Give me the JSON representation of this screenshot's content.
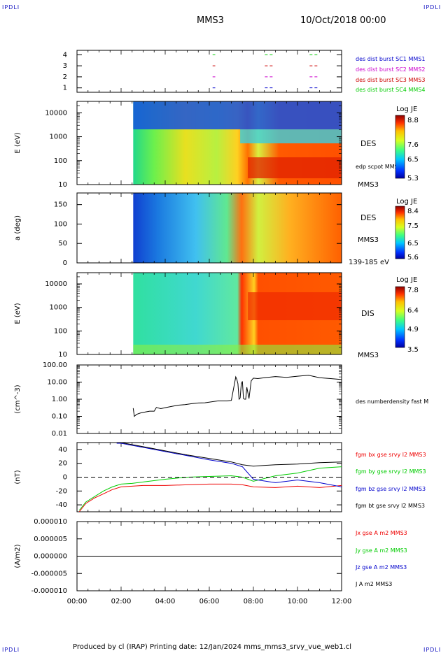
{
  "header": {
    "corner_tl": "IPDLI",
    "corner_tr": "IPDLI",
    "corner_bl": "IPDLI",
    "corner_br": "IPDLI",
    "spacecraft": "MMS3",
    "date": "10/Oct/2018 00:00"
  },
  "footer": "Produced by cl (IRAP)   Printing date: 12/Jan/2024   mms_mms3_srvy_vue_web1.cl",
  "chart_data": [
    {
      "type": "line",
      "panel": "burst-availability",
      "ylim": [
        0.6,
        4.4
      ],
      "yticks": [
        "1",
        "2",
        "3",
        "4"
      ],
      "series": [
        {
          "name": "des dist burst SC1 MMS1",
          "color": "#0000cc",
          "y": 1,
          "segments": [
            [
              6.15,
              6.27
            ],
            [
              8.52,
              8.88
            ],
            [
              10.55,
              10.95
            ]
          ]
        },
        {
          "name": "des dist burst SC2 MMS2",
          "color": "#cc00cc",
          "y": 2,
          "segments": [
            [
              6.15,
              6.27
            ],
            [
              8.52,
              8.88
            ],
            [
              10.55,
              10.95
            ]
          ]
        },
        {
          "name": "des dist burst SC3 MMS3",
          "color": "#cc0000",
          "y": 3,
          "segments": [
            [
              6.15,
              6.27
            ],
            [
              8.52,
              8.88
            ],
            [
              10.55,
              10.95
            ]
          ]
        },
        {
          "name": "des dist burst SC4 MMS4",
          "color": "#00cc00",
          "y": 4,
          "segments": [
            [
              6.15,
              6.27
            ],
            [
              8.52,
              8.88
            ],
            [
              10.55,
              10.95
            ]
          ]
        }
      ]
    },
    {
      "type": "heatmap",
      "panel": "des-energy-spectrogram",
      "ylabel": "E (eV)",
      "yscale": "log",
      "ylim": [
        10,
        30000
      ],
      "yticks": [
        "10",
        "100",
        "1000",
        "10000"
      ],
      "label": "DES",
      "overlay_label": "edp scpot MMS3",
      "sc_label": "MMS3",
      "colorbar": {
        "title": "Log JE",
        "ticks": [
          "8.8",
          "7.6",
          "6.5",
          "5.3"
        ]
      }
    },
    {
      "type": "heatmap",
      "panel": "des-pitch-angle",
      "ylabel": "a (deg)",
      "ylim": [
        0,
        180
      ],
      "yticks": [
        "0",
        "50",
        "100",
        "150"
      ],
      "label": "DES",
      "sc_label": "MMS3",
      "energy_range": "139-185 eV",
      "colorbar": {
        "title": "Log JE",
        "ticks": [
          "8.4",
          "7.5",
          "6.5",
          "5.6"
        ]
      }
    },
    {
      "type": "heatmap",
      "panel": "dis-energy-spectrogram",
      "ylabel": "E (eV)",
      "yscale": "log",
      "ylim": [
        10,
        30000
      ],
      "yticks": [
        "10",
        "100",
        "1000",
        "10000"
      ],
      "label": "DIS",
      "sc_label": "MMS3",
      "colorbar": {
        "title": "Log JE",
        "ticks": [
          "7.8",
          "6.4",
          "4.9",
          "3.5"
        ]
      }
    },
    {
      "type": "line",
      "panel": "number-density",
      "ylabel": "(cm^-3)",
      "yscale": "log",
      "ylim": [
        0.01,
        100
      ],
      "yticks": [
        "0.01",
        "0.10",
        "1.00",
        "10.00",
        "100.00"
      ],
      "series": [
        {
          "name": "des numberdensity fast M",
          "color": "#000000",
          "x": [
            2.55,
            2.6,
            2.7,
            2.9,
            3.1,
            3.3,
            3.5,
            3.6,
            3.8,
            4.0,
            4.3,
            4.6,
            4.9,
            5.2,
            5.5,
            5.8,
            6.1,
            6.4,
            6.8,
            7.0,
            7.2,
            7.25,
            7.3,
            7.35,
            7.4,
            7.45,
            7.5,
            7.55,
            7.6,
            7.65,
            7.7,
            7.8,
            7.9,
            8.0,
            8.2,
            8.5,
            9.0,
            9.5,
            10.0,
            10.5,
            11.0,
            11.5,
            12.0
          ],
          "y": [
            0.3,
            0.1,
            0.13,
            0.16,
            0.18,
            0.2,
            0.2,
            0.33,
            0.28,
            0.32,
            0.38,
            0.45,
            0.48,
            0.55,
            0.6,
            0.62,
            0.7,
            0.8,
            0.8,
            0.85,
            20,
            14,
            8,
            1.0,
            1.2,
            8,
            11,
            1.1,
            1.0,
            1.0,
            5,
            1.1,
            12,
            17,
            16,
            18,
            21,
            19,
            22,
            25,
            18,
            16,
            14
          ]
        }
      ]
    },
    {
      "type": "line",
      "panel": "magnetic-field",
      "ylabel": "(nT)",
      "ylim": [
        -50,
        50
      ],
      "yticks": [
        "-40",
        "-20",
        "0",
        "20",
        "40"
      ],
      "series": [
        {
          "name": "fgm bx gse srvy l2 MMS3",
          "color": "#ee0000",
          "x": [
            0.1,
            0.4,
            0.8,
            1.2,
            1.6,
            2.0,
            2.5,
            3.0,
            4.0,
            5.0,
            6.0,
            7.0,
            7.5,
            8.0,
            9.0,
            10.0,
            11.0,
            12.0
          ],
          "y": [
            -50,
            -38,
            -30,
            -24,
            -18,
            -14,
            -13,
            -12,
            -12,
            -11,
            -10,
            -10,
            -11,
            -14,
            -15,
            -13,
            -15,
            -12
          ]
        },
        {
          "name": "fgm by gse srvy l2 MMS3",
          "color": "#00cc00",
          "x": [
            0.1,
            0.4,
            0.8,
            1.2,
            1.6,
            2.0,
            2.5,
            3.0,
            4.0,
            5.0,
            6.0,
            7.0,
            7.5,
            8.0,
            9.0,
            10.0,
            11.0,
            12.0
          ],
          "y": [
            -48,
            -36,
            -28,
            -20,
            -14,
            -10,
            -9,
            -7,
            -3,
            0,
            1,
            2,
            0,
            -6,
            2,
            6,
            13,
            15
          ]
        },
        {
          "name": "fgm bz gse srvy l2 MMS3",
          "color": "#0000cc",
          "x": [
            1.8,
            2.0,
            2.5,
            3.0,
            4.0,
            5.0,
            6.0,
            7.0,
            7.5,
            8.0,
            9.0,
            10.0,
            11.0,
            12.0
          ],
          "y": [
            49,
            49,
            46,
            43,
            37,
            31,
            25,
            20,
            15,
            -3,
            -8,
            -4,
            -8,
            -14
          ]
        },
        {
          "name": "fgm bt gse srvy l2 MMS3",
          "color": "#000000",
          "x": [
            1.8,
            2.0,
            2.5,
            3.0,
            4.0,
            5.0,
            6.0,
            7.0,
            7.5,
            8.0,
            9.0,
            10.0,
            11.0,
            12.0
          ],
          "y": [
            50,
            50,
            47,
            44,
            38,
            32,
            27,
            22,
            18,
            16,
            18,
            19,
            21,
            22
          ]
        }
      ]
    },
    {
      "type": "line",
      "panel": "current-density",
      "ylabel": "(A/m2)",
      "ylim": [
        -1e-05,
        1e-05
      ],
      "yticks": [
        "-0.000010",
        "-0.000005",
        "0.000000",
        "0.000005",
        "0.000010"
      ],
      "series": [
        {
          "name": "Jx gse A m2 MMS3",
          "color": "#ee0000",
          "x": [
            0,
            12
          ],
          "y": [
            0,
            0
          ]
        },
        {
          "name": "Jy gse A m2 MMS3",
          "color": "#00cc00",
          "x": [
            0,
            12
          ],
          "y": [
            0,
            0
          ]
        },
        {
          "name": "Jz gse A m2 MMS3",
          "color": "#0000cc",
          "x": [
            0,
            12
          ],
          "y": [
            0,
            0
          ]
        },
        {
          "name": "J A m2 MMS3",
          "color": "#000000",
          "x": [
            0,
            12
          ],
          "y": [
            0,
            0
          ]
        }
      ]
    }
  ],
  "time_axis": {
    "xlim": [
      0,
      12
    ],
    "tick_labels": [
      "00:00",
      "02:00",
      "04:00",
      "06:00",
      "08:00",
      "10:00",
      "12:00"
    ]
  }
}
